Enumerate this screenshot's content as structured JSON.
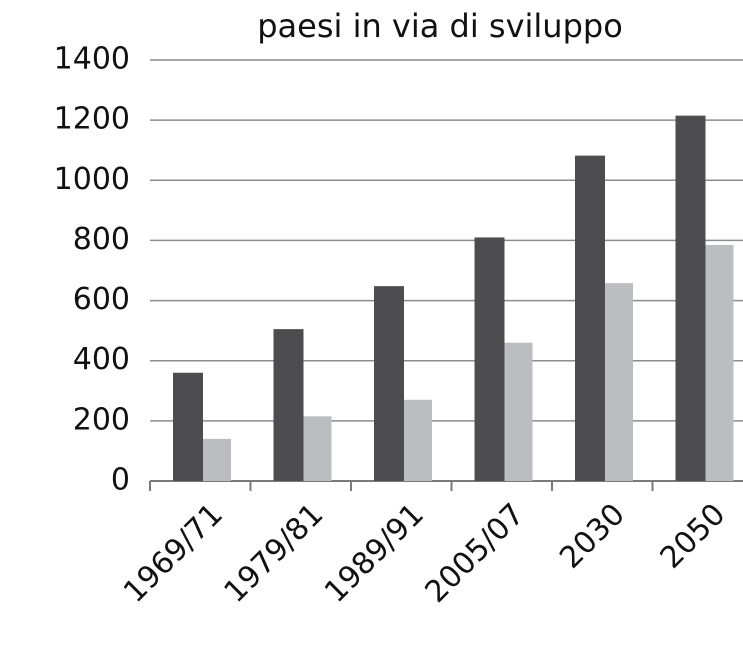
{
  "chart_data": {
    "type": "bar",
    "title": "paesi in via di sviluppo",
    "categories": [
      "1969/71",
      "1979/81",
      "1989/91",
      "2005/07",
      "2030",
      "2050"
    ],
    "series": [
      {
        "color": "#4d4d4f",
        "values": [
          360,
          505,
          648,
          810,
          1082,
          1215
        ]
      },
      {
        "color": "#bcbdc0",
        "values": [
          140,
          215,
          270,
          460,
          658,
          785
        ]
      }
    ],
    "ylim": [
      0,
      1400
    ],
    "yticks": [
      0,
      200,
      400,
      600,
      800,
      1000,
      1200,
      1400
    ],
    "grid": true
  }
}
